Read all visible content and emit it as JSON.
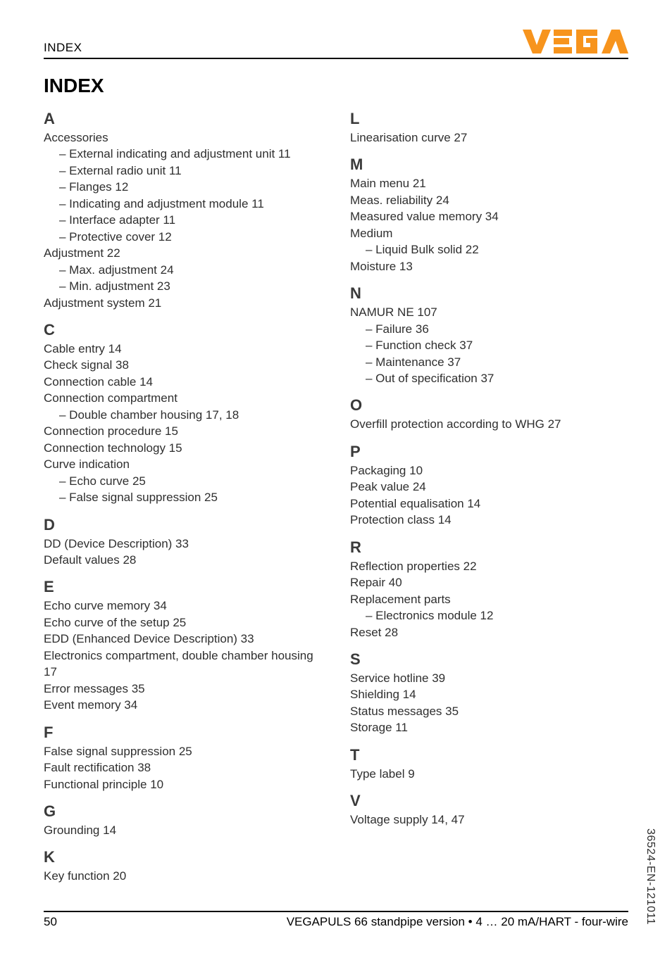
{
  "header": {
    "running_head": "INDEX",
    "title": "INDEX"
  },
  "logo": {
    "brand_text": "VEGA",
    "fill_color": "#f7941d"
  },
  "left_column": [
    {
      "letter": "A",
      "items": [
        {
          "label": "Accessories",
          "subitems": [
            {
              "label": "– External indicating and adjustment unit  11"
            },
            {
              "label": "– External radio unit  11"
            },
            {
              "label": "– Flanges  12"
            },
            {
              "label": "– Indicating and adjustment module  11"
            },
            {
              "label": "– Interface adapter  11"
            },
            {
              "label": "– Protective cover  12"
            }
          ]
        },
        {
          "label": "Adjustment  22",
          "subitems": [
            {
              "label": "– Max. adjustment  24"
            },
            {
              "label": "– Min. adjustment  23"
            }
          ]
        },
        {
          "label": "Adjustment system  21"
        }
      ]
    },
    {
      "letter": "C",
      "items": [
        {
          "label": "Cable entry  14"
        },
        {
          "label": "Check signal  38"
        },
        {
          "label": "Connection cable  14"
        },
        {
          "label": "Connection compartment",
          "subitems": [
            {
              "label": "– Double chamber housing  17, 18"
            }
          ]
        },
        {
          "label": "Connection procedure  15"
        },
        {
          "label": "Connection technology  15"
        },
        {
          "label": "Curve indication",
          "subitems": [
            {
              "label": "– Echo curve  25"
            },
            {
              "label": "– False signal suppression  25"
            }
          ]
        }
      ]
    },
    {
      "letter": "D",
      "items": [
        {
          "label": "DD (Device Description)  33"
        },
        {
          "label": "Default values  28"
        }
      ]
    },
    {
      "letter": "E",
      "items": [
        {
          "label": "Echo curve memory  34"
        },
        {
          "label": "Echo curve of the setup  25"
        },
        {
          "label": "EDD (Enhanced Device Description)  33"
        },
        {
          "label": "Electronics compartment, double chamber housing  17"
        },
        {
          "label": "Error messages  35"
        },
        {
          "label": "Event memory  34"
        }
      ]
    },
    {
      "letter": "F",
      "items": [
        {
          "label": "False signal suppression  25"
        },
        {
          "label": "Fault rectification  38"
        },
        {
          "label": "Functional principle  10"
        }
      ]
    },
    {
      "letter": "G",
      "items": [
        {
          "label": "Grounding  14"
        }
      ]
    },
    {
      "letter": "K",
      "items": [
        {
          "label": "Key function  20"
        }
      ]
    }
  ],
  "right_column": [
    {
      "letter": "L",
      "items": [
        {
          "label": "Linearisation curve  27"
        }
      ]
    },
    {
      "letter": "M",
      "items": [
        {
          "label": "Main menu  21"
        },
        {
          "label": "Meas. reliability  24"
        },
        {
          "label": "Measured value memory  34"
        },
        {
          "label": "Medium",
          "subitems": [
            {
              "label": "– Liquid Bulk solid  22"
            }
          ]
        },
        {
          "label": "Moisture  13"
        }
      ]
    },
    {
      "letter": "N",
      "items": [
        {
          "label": "NAMUR NE 107",
          "subitems": [
            {
              "label": "– Failure  36"
            },
            {
              "label": "– Function check  37"
            },
            {
              "label": "– Maintenance  37"
            },
            {
              "label": "– Out of specification  37"
            }
          ]
        }
      ]
    },
    {
      "letter": "O",
      "items": [
        {
          "label": "Overfill protection according to WHG  27"
        }
      ]
    },
    {
      "letter": "P",
      "items": [
        {
          "label": "Packaging  10"
        },
        {
          "label": "Peak value  24"
        },
        {
          "label": "Potential equalisation  14"
        },
        {
          "label": "Protection class  14"
        }
      ]
    },
    {
      "letter": "R",
      "items": [
        {
          "label": "Reflection properties  22"
        },
        {
          "label": "Repair  40"
        },
        {
          "label": "Replacement parts",
          "subitems": [
            {
              "label": "– Electronics module  12"
            }
          ]
        },
        {
          "label": "Reset  28"
        }
      ]
    },
    {
      "letter": "S",
      "items": [
        {
          "label": "Service hotline  39"
        },
        {
          "label": "Shielding  14"
        },
        {
          "label": "Status messages  35"
        },
        {
          "label": "Storage  11"
        }
      ]
    },
    {
      "letter": "T",
      "items": [
        {
          "label": "Type label  9"
        }
      ]
    },
    {
      "letter": "V",
      "items": [
        {
          "label": "Voltage supply  14, 47"
        }
      ]
    }
  ],
  "footer": {
    "page_number": "50",
    "product_line": "VEGAPULS 66 standpipe version • 4 … 20 mA/HART - four-wire"
  },
  "side_label": "36524-EN-121011"
}
